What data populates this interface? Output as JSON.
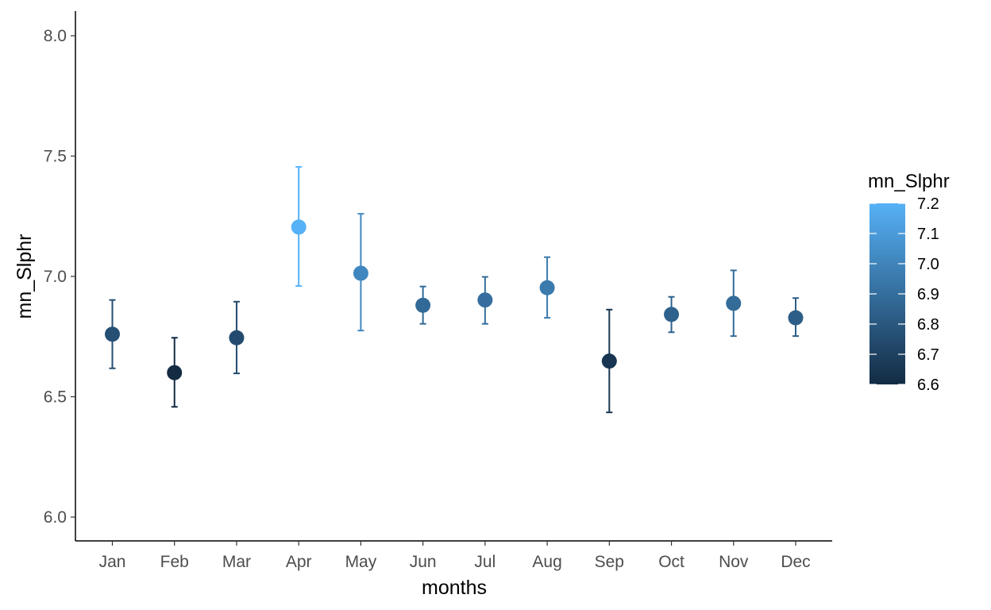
{
  "chart_data": {
    "type": "scatter",
    "subtype": "point-with-errorbars",
    "title": "",
    "xlabel": "months",
    "ylabel": "mn_Slphr",
    "categories": [
      "Jan",
      "Feb",
      "Mar",
      "Apr",
      "May",
      "Jun",
      "Jul",
      "Aug",
      "Sep",
      "Oct",
      "Nov",
      "Dec"
    ],
    "values": [
      6.76,
      6.6,
      6.745,
      7.205,
      7.013,
      6.88,
      6.902,
      6.953,
      6.648,
      6.842,
      6.888,
      6.828
    ],
    "error_low": [
      6.618,
      6.458,
      6.597,
      6.96,
      6.775,
      6.803,
      6.803,
      6.828,
      6.435,
      6.768,
      6.752,
      6.752
    ],
    "error_high": [
      6.902,
      6.745,
      6.895,
      7.455,
      7.26,
      6.958,
      6.998,
      7.08,
      6.862,
      6.915,
      7.025,
      6.91
    ],
    "y_ticks": [
      "6.0",
      "6.5",
      "7.0",
      "7.5",
      "8.0"
    ],
    "ylim": [
      5.9,
      8.1
    ],
    "grid": false,
    "color_scale": {
      "title": "mn_Slphr",
      "min": 6.6,
      "max": 7.2,
      "low_color": "#132B43",
      "high_color": "#56B1F7",
      "ticks": [
        "6.6",
        "6.7",
        "6.8",
        "6.9",
        "7.0",
        "7.1",
        "7.2"
      ]
    },
    "legend_position": "right"
  }
}
